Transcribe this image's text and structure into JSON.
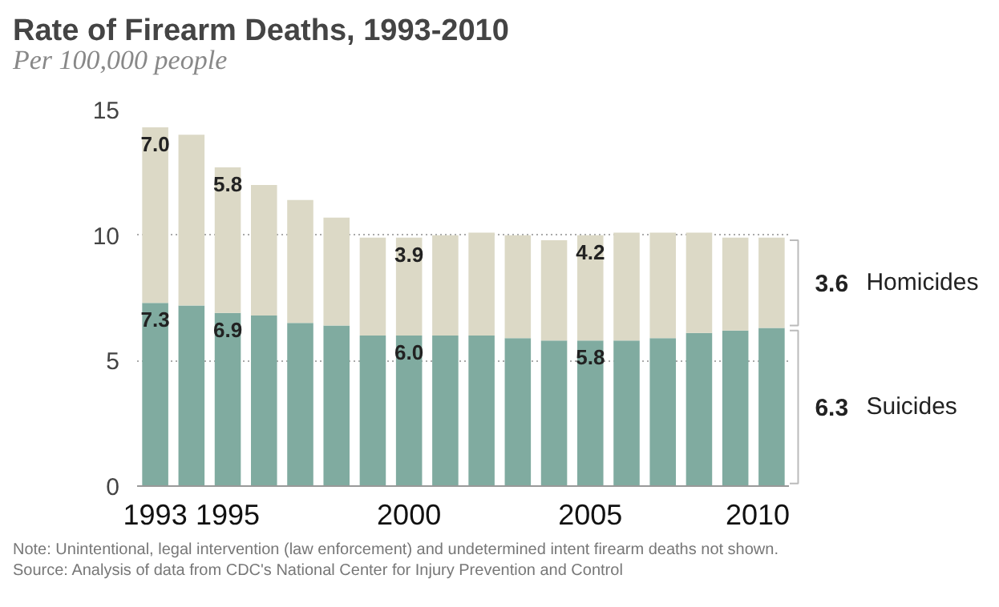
{
  "chart_data": {
    "type": "bar",
    "stacked": true,
    "title": "Rate of Firearm Deaths, 1993-2010",
    "subtitle": "Per 100,000 people",
    "x": [
      1993,
      1994,
      1995,
      1996,
      1997,
      1998,
      1999,
      2000,
      2001,
      2002,
      2003,
      2004,
      2005,
      2006,
      2007,
      2008,
      2009,
      2010
    ],
    "series": [
      {
        "name": "6.3 Suicides",
        "color": "#80aba0",
        "values": [
          7.3,
          7.2,
          6.9,
          6.8,
          6.5,
          6.4,
          6.0,
          6.0,
          6.0,
          6.0,
          5.9,
          5.8,
          5.8,
          5.8,
          5.9,
          6.1,
          6.2,
          6.3
        ],
        "value_labels": [
          "7.3",
          null,
          "6.9",
          null,
          null,
          null,
          null,
          "6.0",
          null,
          null,
          null,
          null,
          "5.8",
          null,
          null,
          null,
          null,
          null
        ]
      },
      {
        "name": "3.6 Homicides",
        "color": "#dcd9c6",
        "values": [
          7.0,
          6.8,
          5.8,
          5.2,
          4.9,
          4.3,
          3.9,
          3.9,
          4.0,
          4.1,
          4.1,
          4.0,
          4.2,
          4.3,
          4.2,
          4.0,
          3.7,
          3.6
        ],
        "value_labels": [
          "7.0",
          null,
          "5.8",
          null,
          null,
          null,
          null,
          "3.9",
          null,
          null,
          null,
          null,
          "4.2",
          null,
          null,
          null,
          null,
          null
        ]
      }
    ],
    "xlim": [
      1992.5,
      2010.5
    ],
    "xticks": [
      1993,
      1995,
      2000,
      2005,
      2010
    ],
    "ylim": [
      0,
      15
    ],
    "yticks": [
      0,
      5,
      10,
      15
    ],
    "grid": "y",
    "legend": "right",
    "annotations": [
      "Note: Unintentional, legal intervention (law enforcement) and undetermined intent firearm deaths not shown.",
      "Source: Analysis of data from CDC's National Center for Injury Prevention and Control"
    ]
  }
}
